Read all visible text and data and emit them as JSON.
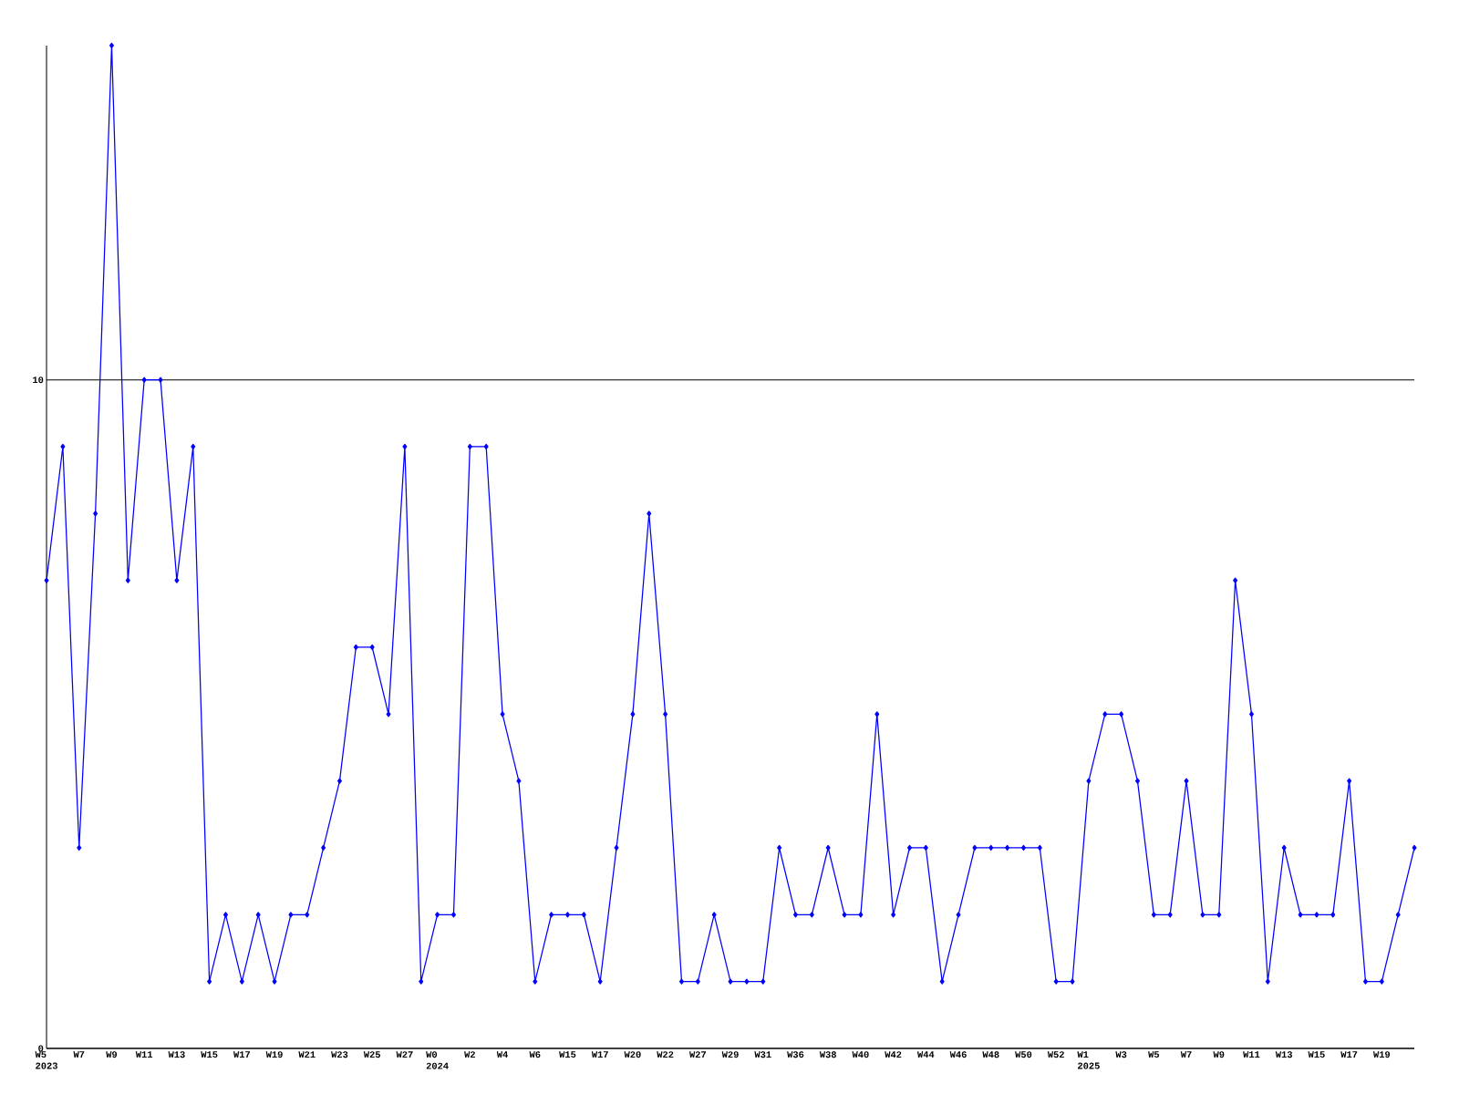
{
  "chart_data": {
    "type": "line",
    "categories": [
      "W5\n2023",
      null,
      "W7",
      null,
      "W9",
      null,
      "W11",
      null,
      "W13",
      null,
      "W15",
      null,
      "W17",
      null,
      "W19",
      null,
      "W21",
      null,
      "W23",
      null,
      "W25",
      null,
      "W27",
      null,
      "W0\n2024",
      null,
      "W2",
      null,
      "W4",
      null,
      "W6",
      null,
      "W15",
      null,
      "W17",
      null,
      "W20",
      null,
      "W22",
      null,
      "W27",
      null,
      "W29",
      null,
      "W31",
      null,
      "W36",
      null,
      "W38",
      null,
      "W40",
      null,
      "W42",
      null,
      "W44",
      null,
      "W46",
      null,
      "W48",
      null,
      "W50",
      null,
      "W52",
      null,
      "W1\n2025",
      null,
      "W3",
      null,
      "W5",
      null,
      "W7",
      null,
      "W9",
      null,
      "W11",
      null,
      "W13",
      null,
      "W15",
      null,
      "W17",
      null,
      "W19",
      null,
      null
    ],
    "values": [
      7,
      9,
      3,
      8,
      15,
      7,
      10,
      10,
      7,
      9,
      1,
      2,
      1,
      2,
      1,
      2,
      2,
      3,
      4,
      6,
      6,
      5,
      9,
      1,
      2,
      2,
      9,
      9,
      5,
      4,
      1,
      2,
      2,
      2,
      1,
      3,
      5,
      8,
      5,
      1,
      1,
      2,
      1,
      1,
      1,
      3,
      2,
      2,
      3,
      2,
      2,
      5,
      2,
      3,
      3,
      1,
      2,
      3,
      3,
      3,
      3,
      3,
      1,
      1,
      4,
      5,
      5,
      4,
      2,
      2,
      4,
      2,
      2,
      7,
      5,
      1,
      3,
      2,
      2,
      2,
      4,
      1,
      1,
      2,
      3
    ],
    "color": "#0000ff",
    "marker": "diamond",
    "grid": "y",
    "ylim": [
      0,
      15
    ],
    "yticks": [
      0,
      10
    ]
  }
}
